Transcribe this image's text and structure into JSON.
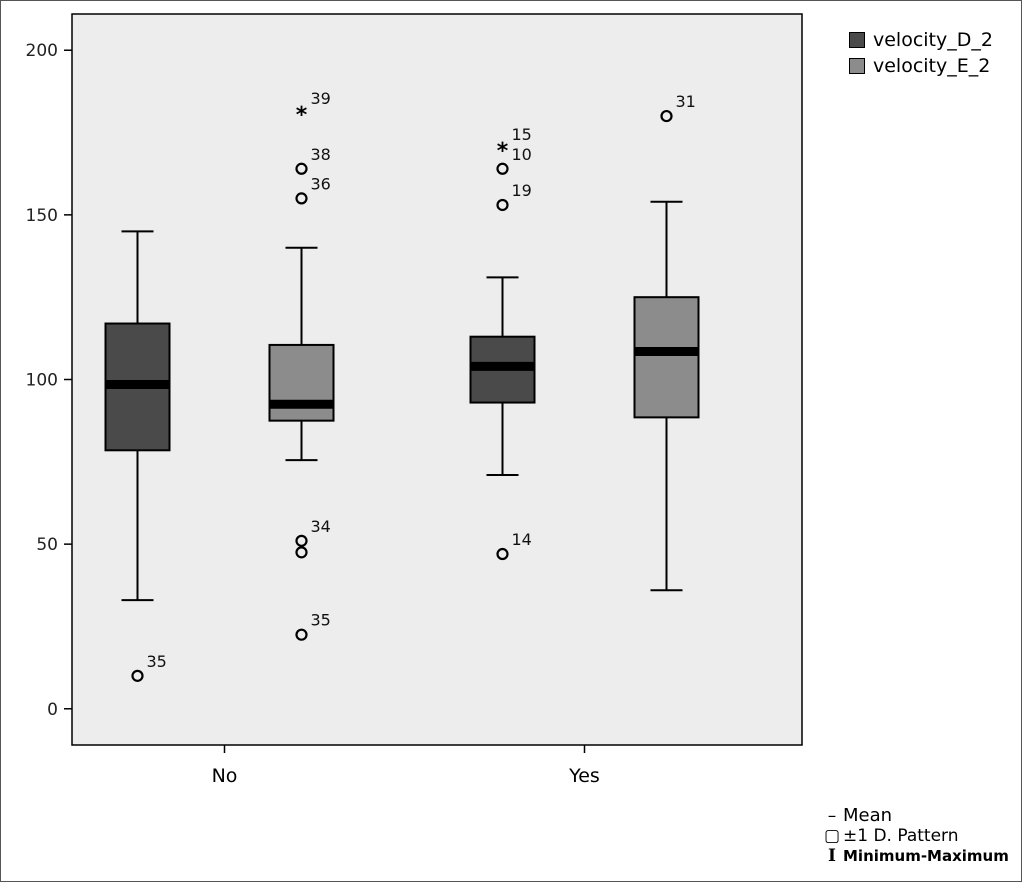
{
  "chart_data": {
    "type": "boxplot",
    "categories": [
      "No",
      "Yes"
    ],
    "ylim": [
      -11,
      211
    ],
    "yticks": [
      0,
      50,
      100,
      150,
      200
    ],
    "colors": {
      "velocity_D_2": "#4a4a4a",
      "velocity_E_2": "#8c8c8c",
      "plot_background": "#ededed"
    },
    "series": [
      {
        "name": "velocity_D_2",
        "boxes": [
          {
            "category": "No",
            "min": 33,
            "q1": 78.5,
            "median": 98.5,
            "q3": 117,
            "max": 145,
            "outliers": [
              {
                "value": 10,
                "label": "35",
                "marker": "circle"
              }
            ]
          },
          {
            "category": "Yes",
            "min": 71,
            "q1": 93,
            "median": 104,
            "q3": 113,
            "max": 131,
            "outliers": [
              {
                "value": 47,
                "label": "14",
                "marker": "circle"
              },
              {
                "value": 153,
                "label": "19",
                "marker": "circle"
              },
              {
                "value": 164,
                "label": "10",
                "marker": "circle"
              },
              {
                "value": 170,
                "label": "15",
                "marker": "star"
              }
            ]
          }
        ]
      },
      {
        "name": "velocity_E_2",
        "boxes": [
          {
            "category": "No",
            "min": 75.5,
            "q1": 87.5,
            "median": 92.5,
            "q3": 110.5,
            "max": 140,
            "outliers": [
              {
                "value": 22.5,
                "label": "35",
                "marker": "circle"
              },
              {
                "value": 47.5,
                "label": "",
                "marker": "circle"
              },
              {
                "value": 51,
                "label": "34",
                "marker": "circle"
              },
              {
                "value": 155,
                "label": "36",
                "marker": "circle"
              },
              {
                "value": 164,
                "label": "38",
                "marker": "circle"
              },
              {
                "value": 181,
                "label": "39",
                "marker": "star"
              }
            ]
          },
          {
            "category": "Yes",
            "min": 36,
            "q1": 88.5,
            "median": 108.5,
            "q3": 125,
            "max": 154,
            "outliers": [
              {
                "value": 180,
                "label": "31",
                "marker": "circle"
              }
            ]
          }
        ]
      }
    ]
  },
  "legend": {
    "items": [
      {
        "label": "velocity_D_2"
      },
      {
        "label": "velocity_E_2"
      }
    ]
  },
  "notes": {
    "mean": "Mean",
    "sd": "±1 D. Pattern",
    "range": "Minimum-Maximum",
    "mean_glyph": "–",
    "sd_glyph": "▢",
    "range_glyph": "I"
  }
}
